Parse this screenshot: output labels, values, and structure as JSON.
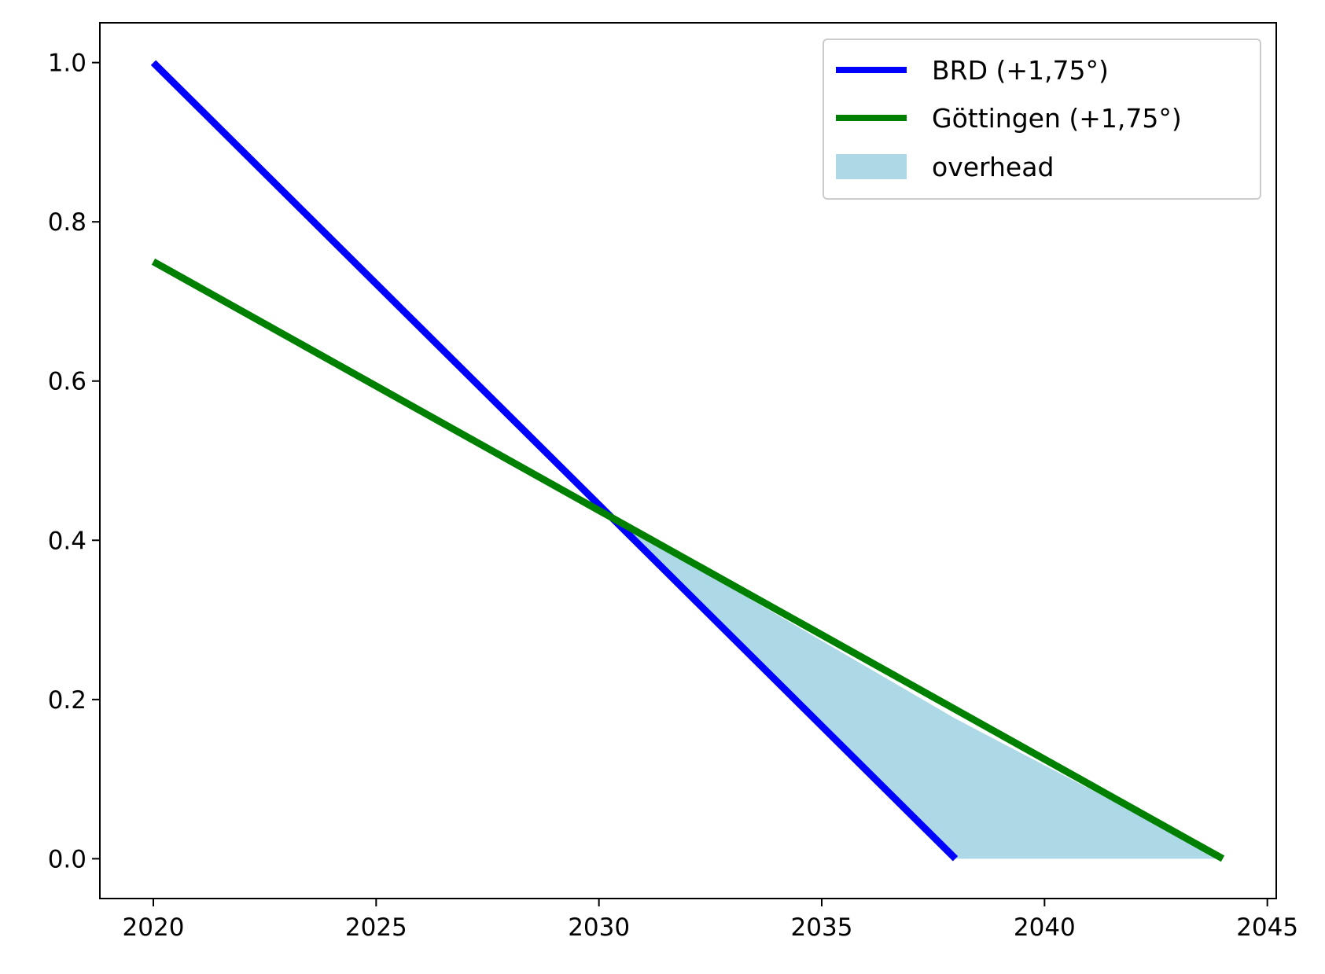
{
  "chart_data": {
    "type": "line",
    "title": "",
    "xlabel": "",
    "ylabel": "",
    "xlim": [
      2018.8,
      2045.2
    ],
    "ylim": [
      -0.05,
      1.05
    ],
    "xticks": [
      2020,
      2025,
      2030,
      2035,
      2040,
      2045
    ],
    "xtick_labels": [
      "2020",
      "2025",
      "2030",
      "2035",
      "2040",
      "2045"
    ],
    "yticks": [
      0.0,
      0.2,
      0.4,
      0.6,
      0.8,
      1.0
    ],
    "ytick_labels": [
      "0.0",
      "0.2",
      "0.4",
      "0.6",
      "0.8",
      "1.0"
    ],
    "grid": false,
    "legend_position": "top-right",
    "series": [
      {
        "name": "BRD (+1,75°)",
        "color": "#0000ff",
        "x": [
          2020,
          2038
        ],
        "y": [
          1.0,
          0.0
        ]
      },
      {
        "name": "Göttingen (+1,75°)",
        "color": "#008000",
        "x": [
          2020,
          2044
        ],
        "y": [
          0.75,
          0.0
        ]
      }
    ],
    "fill": {
      "name": "overhead",
      "color": "#add8e6",
      "x": [
        2030.33,
        2038,
        2044
      ],
      "y_upper": [
        0.426,
        0.176,
        0.0
      ],
      "y_lower": [
        0.426,
        0.0,
        0.0
      ]
    }
  }
}
